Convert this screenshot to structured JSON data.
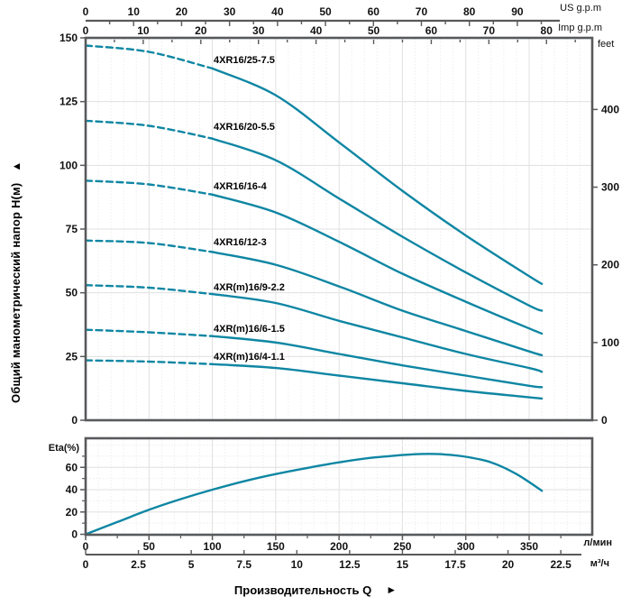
{
  "labels": {
    "y_title": "Общий манометрический напор Н(м)",
    "x_title": "Производительность Q",
    "up_arrow": "▲",
    "right_arrow": "►"
  },
  "units": {
    "us_gpm": "US g.p.m",
    "imp_gpm": "Imp g.p.m",
    "feet": "feet",
    "lpm": "л/мин",
    "m3h": "м³/ч",
    "eta_pct": "Eta(%)"
  },
  "colors": {
    "curve": "#0e86a3",
    "border": "#58595b",
    "grid_major": "#e0e0e0",
    "grid_minor": "#eeeeee",
    "text": "#000000"
  },
  "chart_data": [
    {
      "type": "line",
      "title": "Pump head vs flow curves 4XR16 series",
      "xlabel": "Производительность Q",
      "ylabel": "Общий манометрический напор Н(м)",
      "xlim_lpm": [
        0,
        400
      ],
      "ylim_m": [
        0,
        150
      ],
      "dashed_below_lpm": 100,
      "x_lpm": [
        0,
        50,
        100,
        150,
        200,
        250,
        300,
        350,
        360
      ],
      "series": [
        {
          "name": "4XR16/25-7.5",
          "head_m": [
            147,
            144.5,
            138,
            127.5,
            109,
            90,
            72.5,
            56.5,
            53.5
          ]
        },
        {
          "name": "4XR16/20-5.5",
          "head_m": [
            117.5,
            115.5,
            110.5,
            102,
            87,
            72,
            58,
            45,
            43
          ]
        },
        {
          "name": "4XR16/16-4",
          "head_m": [
            94,
            92.5,
            88.5,
            81.5,
            70,
            57.5,
            46.5,
            36,
            34
          ]
        },
        {
          "name": "4XR16/12-3",
          "head_m": [
            70.5,
            69.5,
            66,
            61,
            52.5,
            43,
            35,
            27,
            25.5
          ]
        },
        {
          "name": "4XR(m)16/9-2.2",
          "head_m": [
            53,
            52,
            49.5,
            46,
            39,
            32.5,
            26,
            20.5,
            19
          ]
        },
        {
          "name": "4XR(m)16/6-1.5",
          "head_m": [
            35.5,
            34.5,
            33,
            30.5,
            26,
            21.5,
            17.5,
            13.5,
            13
          ]
        },
        {
          "name": "4XR(m)16/4-1.1",
          "head_m": [
            23.5,
            23,
            22,
            20.5,
            17.5,
            14.5,
            11.5,
            9,
            8.5
          ]
        }
      ],
      "axis_ticks": {
        "us_gpm": [
          0,
          10,
          20,
          30,
          40,
          50,
          60,
          70,
          80,
          90
        ],
        "imp_gpm": [
          0,
          10,
          20,
          30,
          40,
          50,
          60,
          70,
          80
        ],
        "head_m": [
          0,
          25,
          50,
          75,
          100,
          125,
          150
        ],
        "feet": [
          0,
          100,
          200,
          300,
          400
        ]
      }
    },
    {
      "type": "line",
      "title": "Efficiency curve",
      "ylabel": "Eta(%)",
      "ylim_pct": [
        0,
        86
      ],
      "x_lpm": [
        0,
        25,
        50,
        75,
        100,
        125,
        150,
        175,
        200,
        225,
        250,
        265,
        280,
        300,
        320,
        340,
        360
      ],
      "eta_pct": [
        0,
        11,
        22,
        31.5,
        40,
        47.5,
        54,
        59.5,
        64.5,
        68.5,
        71,
        72,
        71.8,
        69.5,
        64.5,
        54,
        39
      ],
      "axis_ticks": {
        "eta_pct": [
          0,
          20,
          40,
          60
        ],
        "lpm": [
          0,
          50,
          100,
          150,
          200,
          250,
          300,
          350
        ],
        "m3h": [
          "0",
          "2.5",
          "5",
          "7.5",
          "10",
          "12.5",
          "15",
          "17.5",
          "20",
          "22.5"
        ]
      }
    }
  ]
}
